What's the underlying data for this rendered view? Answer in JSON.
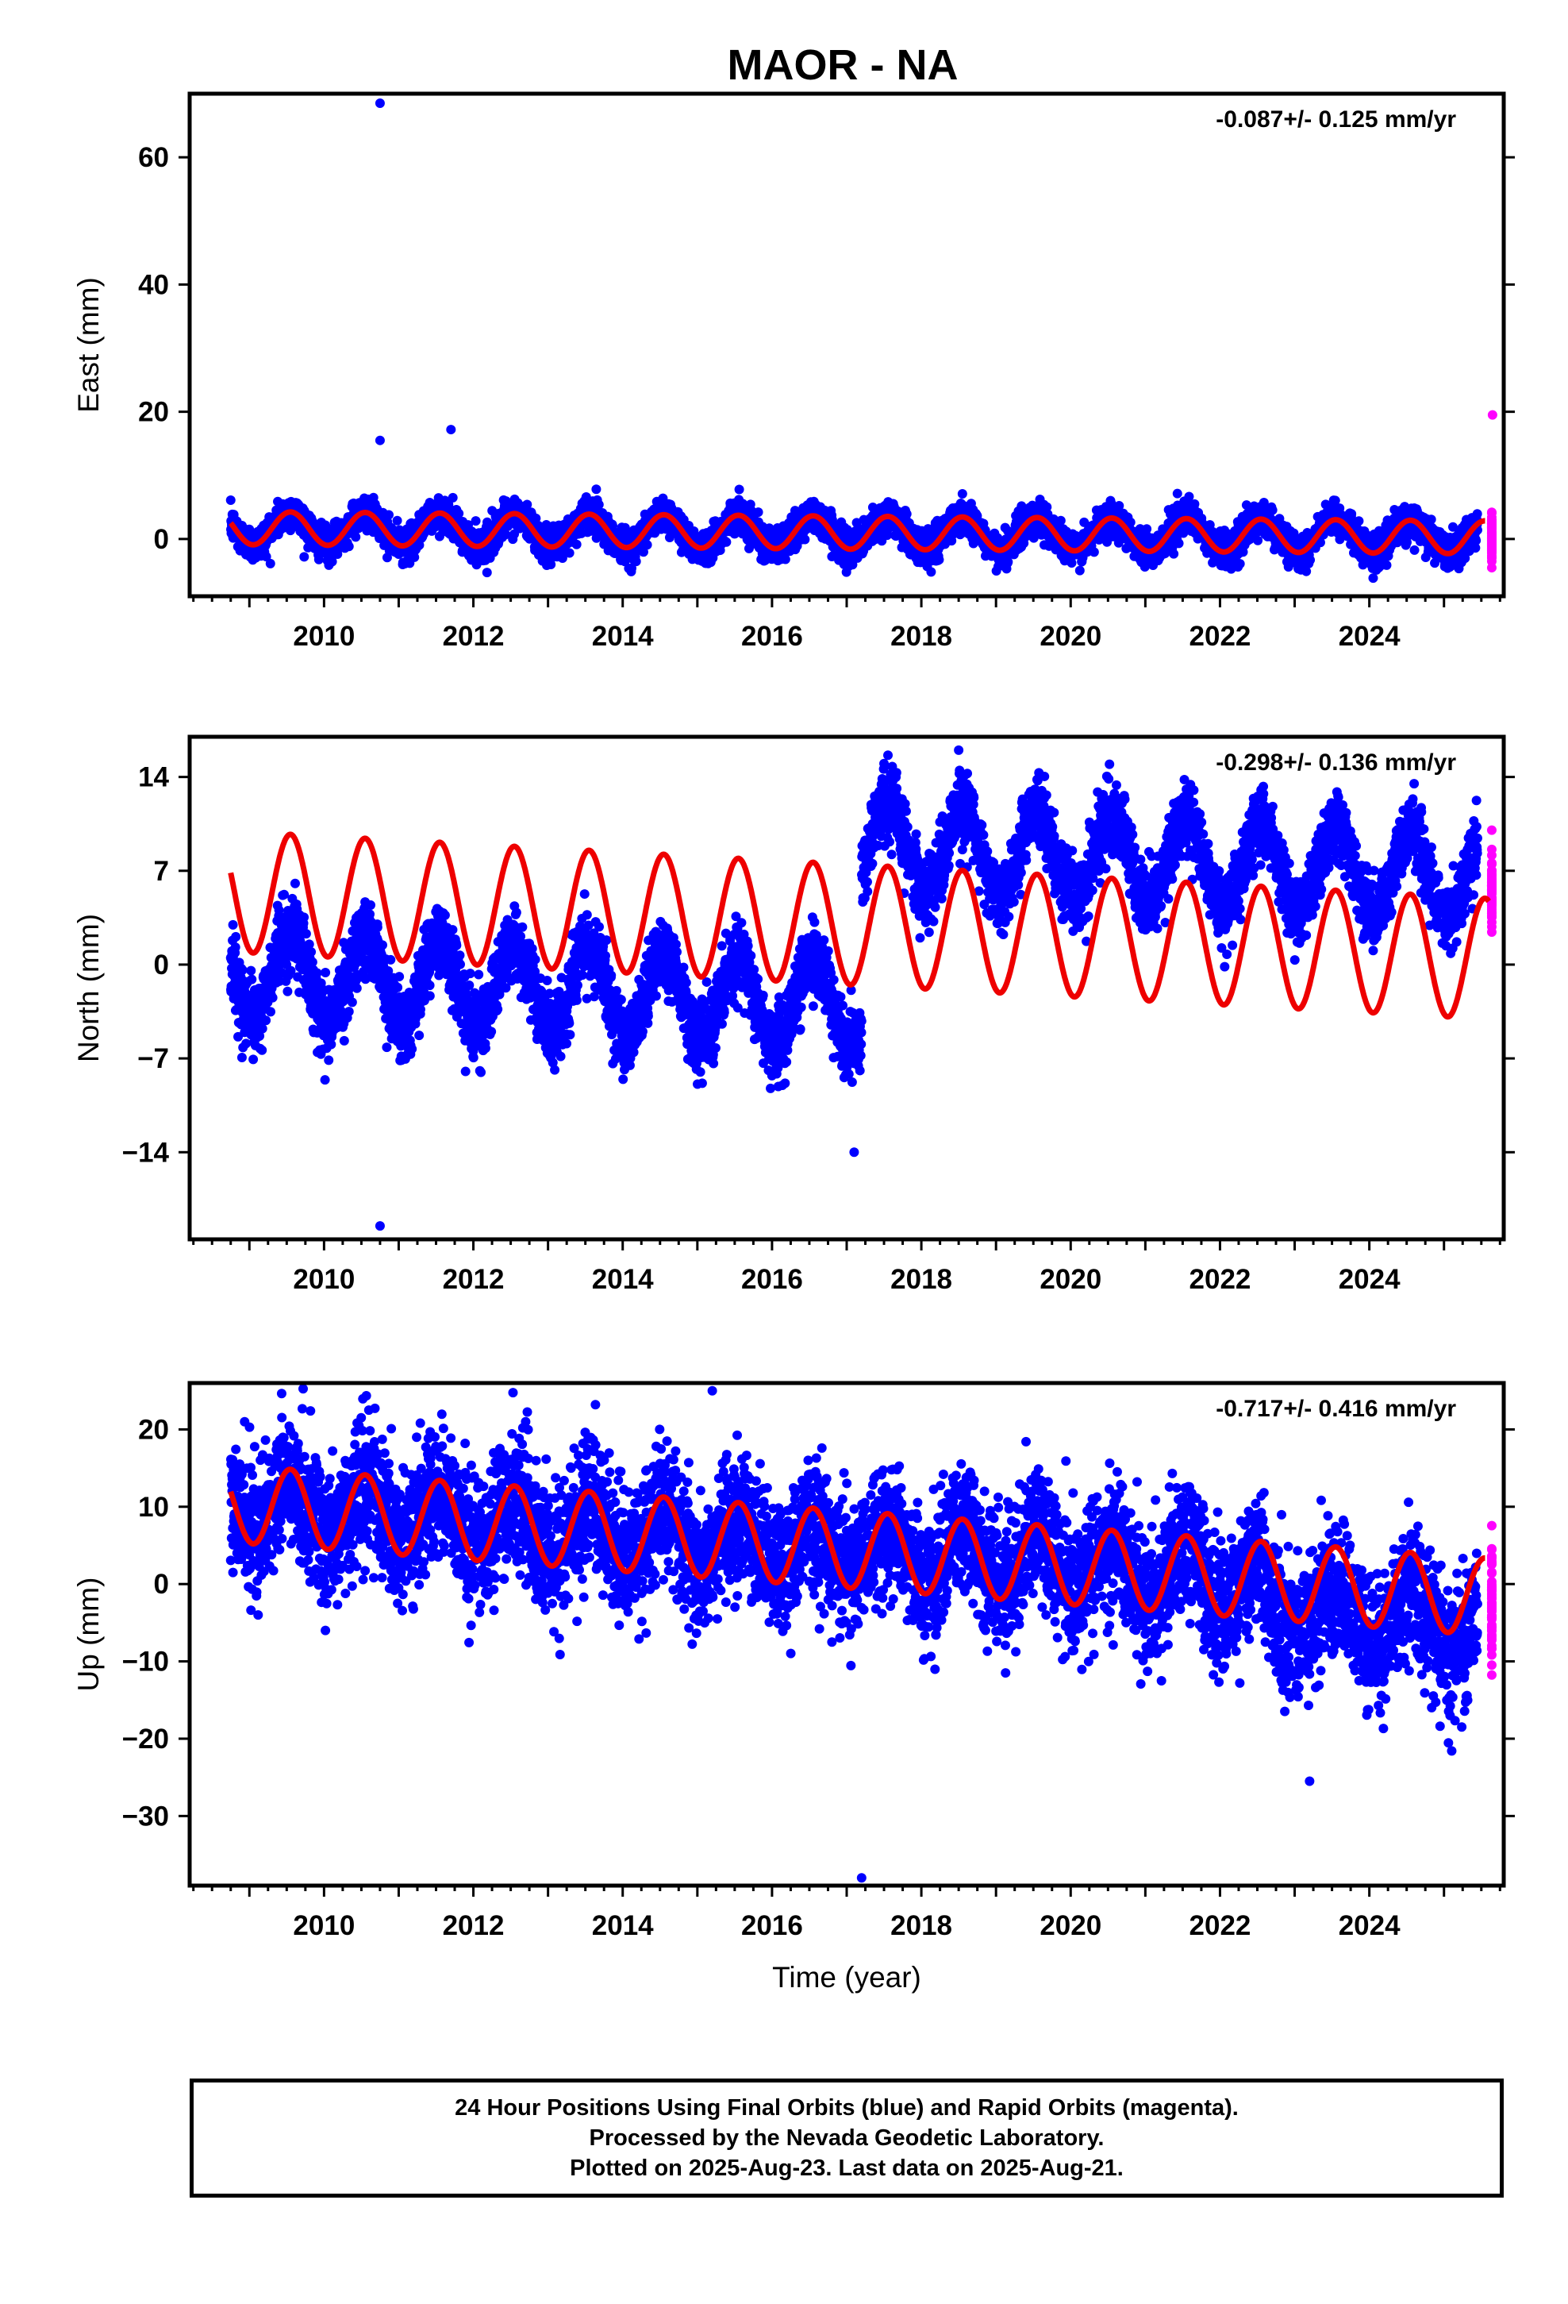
{
  "title": "MAOR - NA",
  "colors": {
    "final": "#0000ff",
    "rapid": "#ff00ff",
    "model": "#ee0000",
    "frame": "#000000"
  },
  "footer": {
    "line1": "24 Hour Positions Using Final Orbits (blue) and Rapid Orbits (magenta).",
    "line2": "Processed by the Nevada Geodetic Laboratory.",
    "line3": "Plotted on 2025-Aug-23. Last data on 2025-Aug-21."
  },
  "chart_data": [
    {
      "type": "scatter",
      "ylabel": "East (mm)",
      "xlabel": "",
      "rate_label": "-0.087+/- 0.125 mm/yr",
      "xlim": [
        2008.2,
        2025.8
      ],
      "ylim": [
        -9,
        70
      ],
      "xticks": [
        2010,
        2012,
        2014,
        2016,
        2018,
        2020,
        2022,
        2024
      ],
      "yticks": [
        0,
        20,
        40,
        60
      ],
      "series": [
        {
          "name": "Final Orbits",
          "style": "points",
          "start": 2008.75,
          "end": 2025.45,
          "offset": 1.0,
          "trend": -0.087,
          "amplitude": 2.5,
          "noise": 1.3,
          "step_at": null,
          "step": 0
        },
        {
          "name": "Rapid Orbits",
          "style": "points-rapid",
          "start": 2025.45,
          "end": 2025.64,
          "offset": 0.5,
          "trend": 0,
          "amplitude": 0,
          "noise": 2.0
        },
        {
          "name": "Model",
          "style": "line",
          "start": 2008.75,
          "end": 2025.55,
          "offset": 1.0,
          "trend": -0.087,
          "amplitude": 2.6,
          "step_at": null,
          "step": 0
        }
      ],
      "outliers": [
        [
          2010.75,
          68.5
        ],
        [
          2010.75,
          15.5
        ],
        [
          2011.7,
          17.2
        ],
        [
          2025.65,
          19.5
        ]
      ]
    },
    {
      "type": "scatter",
      "ylabel": "North (mm)",
      "xlabel": "",
      "rate_label": "-0.298+/- 0.136 mm/yr",
      "xlim": [
        2008.2,
        2025.8
      ],
      "ylim": [
        -20.5,
        17
      ],
      "xticks": [
        2010,
        2012,
        2014,
        2016,
        2018,
        2020,
        2022,
        2024
      ],
      "yticks": [
        14,
        7,
        0,
        -7,
        -14
      ],
      "series": [
        {
          "name": "Final Orbits",
          "style": "points",
          "start": 2008.75,
          "end": 2025.45,
          "offset": -3.0,
          "trend": -0.298,
          "amplitude": 3.2,
          "noise": 1.3,
          "step_at": 2017.2,
          "step": 12.0
        },
        {
          "name": "Rapid Orbits",
          "style": "points-rapid",
          "start": 2025.45,
          "end": 2025.64,
          "offset": 5.5,
          "trend": 0,
          "amplitude": 0,
          "noise": 1.2
        },
        {
          "name": "Model",
          "style": "line",
          "start": 2008.75,
          "end": 2025.6,
          "offset": 3.0,
          "trend": -0.298,
          "amplitude": 4.5,
          "step_at": null,
          "step": 0
        }
      ],
      "outliers": [
        [
          2010.75,
          -19.5
        ],
        [
          2017.5,
          15
        ],
        [
          2018.5,
          16
        ],
        [
          2024.6,
          13.5
        ],
        [
          2017.1,
          -14
        ]
      ]
    },
    {
      "type": "scatter",
      "ylabel": "Up (mm)",
      "xlabel": "Time (year)",
      "rate_label": "-0.717+/- 0.416 mm/yr",
      "xlim": [
        2008.2,
        2025.8
      ],
      "ylim": [
        -39,
        26
      ],
      "xticks": [
        2010,
        2012,
        2014,
        2016,
        2018,
        2020,
        2022,
        2024
      ],
      "yticks": [
        20,
        10,
        0,
        -10,
        -20,
        -30
      ],
      "series": [
        {
          "name": "Final Orbits",
          "style": "points",
          "start": 2008.75,
          "end": 2025.45,
          "offset": 4.5,
          "trend": -0.717,
          "amplitude": 3.5,
          "noise": 4.2,
          "step_at": 2022.6,
          "step": -4.0
        },
        {
          "name": "Rapid Orbits",
          "style": "points-rapid",
          "start": 2025.45,
          "end": 2025.64,
          "offset": -3.0,
          "trend": 0,
          "amplitude": 0,
          "noise": 4.0
        },
        {
          "name": "Model",
          "style": "line",
          "start": 2008.75,
          "end": 2025.55,
          "offset": 4.5,
          "trend": -0.717,
          "amplitude": 5.0,
          "step_at": null,
          "step": 0
        }
      ],
      "outliers": [
        [
          2015.2,
          25
        ],
        [
          2017.2,
          -38
        ],
        [
          2010.6,
          22.5
        ],
        [
          2012.7,
          21
        ],
        [
          2023.2,
          -25.5
        ]
      ]
    }
  ]
}
